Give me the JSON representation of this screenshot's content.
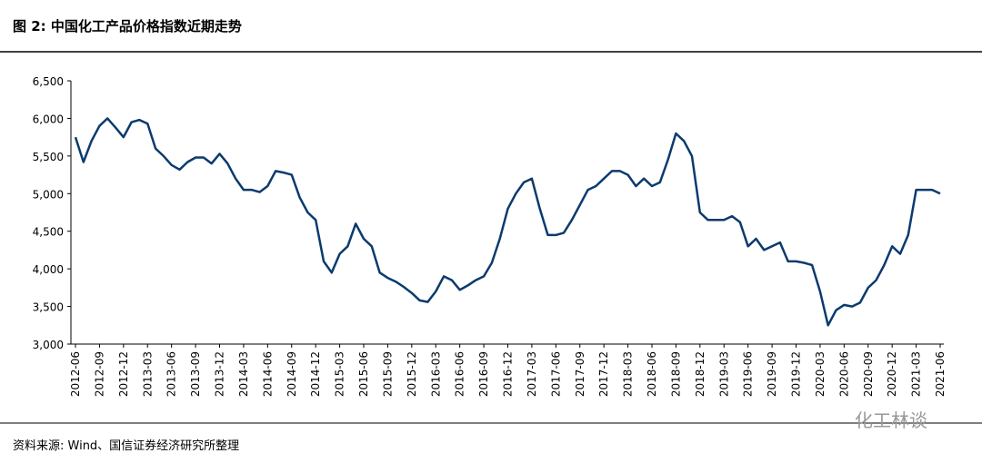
{
  "chart_data": {
    "type": "line",
    "title": "图 2:  中国化工产品价格指数近期走势",
    "source": "资料来源: Wind、国信证券经济研究所整理",
    "watermark": "化工林谈",
    "categories": [
      "2012-06",
      null,
      null,
      "2012-09",
      null,
      null,
      "2012-12",
      null,
      null,
      "2013-03",
      null,
      null,
      "2013-06",
      null,
      null,
      "2013-09",
      null,
      null,
      "2013-12",
      null,
      null,
      "2014-03",
      null,
      null,
      "2014-06",
      null,
      null,
      "2014-09",
      null,
      null,
      "2014-12",
      null,
      null,
      "2015-03",
      null,
      null,
      "2015-06",
      null,
      null,
      "2015-09",
      null,
      null,
      "2015-12",
      null,
      null,
      "2016-03",
      null,
      null,
      "2016-06",
      null,
      null,
      "2016-09",
      null,
      null,
      "2016-12",
      null,
      null,
      "2017-03",
      null,
      null,
      "2017-06",
      null,
      null,
      "2017-09",
      null,
      null,
      "2017-12",
      null,
      null,
      "2018-03",
      null,
      null,
      "2018-06",
      null,
      null,
      "2018-09",
      null,
      null,
      "2018-12",
      null,
      null,
      "2019-03",
      null,
      null,
      "2019-06",
      null,
      null,
      "2019-09",
      null,
      null,
      "2019-12",
      null,
      null,
      "2020-03",
      null,
      null,
      "2020-06",
      null,
      null,
      "2020-09",
      null,
      null,
      "2020-12",
      null,
      null,
      "2021-03",
      null,
      null,
      "2021-06"
    ],
    "values": [
      5750,
      5420,
      5700,
      5900,
      6000,
      5880,
      5750,
      5950,
      5980,
      5930,
      5600,
      5500,
      5380,
      5320,
      5420,
      5480,
      5480,
      5400,
      5530,
      5400,
      5200,
      5050,
      5050,
      5020,
      5100,
      5300,
      5280,
      5250,
      4950,
      4750,
      4650,
      4100,
      3950,
      4200,
      4300,
      4600,
      4400,
      4300,
      3950,
      3880,
      3830,
      3760,
      3680,
      3580,
      3560,
      3700,
      3900,
      3850,
      3720,
      3780,
      3850,
      3900,
      4080,
      4400,
      4800,
      5000,
      5150,
      5200,
      4800,
      4450,
      4450,
      4480,
      4650,
      4850,
      5050,
      5100,
      5200,
      5300,
      5300,
      5250,
      5100,
      5200,
      5100,
      5150,
      5450,
      5800,
      5700,
      5500,
      4750,
      4650,
      4650,
      4650,
      4700,
      4620,
      4300,
      4400,
      4250,
      4300,
      4350,
      4100,
      4100,
      4080,
      4050,
      3700,
      3250,
      3450,
      3520,
      3500,
      3550,
      3750,
      3850,
      4050,
      4300,
      4200,
      4450,
      5050,
      5050,
      5050,
      5000
    ],
    "color": "#0b3a6e",
    "ylim": [
      3000,
      6500
    ],
    "yticks": [
      {
        "value": 3000,
        "label": "3,000"
      },
      {
        "value": 3500,
        "label": "3,500"
      },
      {
        "value": 4000,
        "label": "4,000"
      },
      {
        "value": 4500,
        "label": "4,500"
      },
      {
        "value": 5000,
        "label": "5,000"
      },
      {
        "value": 5500,
        "label": "5,500"
      },
      {
        "value": 6000,
        "label": "6,000"
      },
      {
        "value": 6500,
        "label": "6,500"
      }
    ],
    "grid": false
  }
}
